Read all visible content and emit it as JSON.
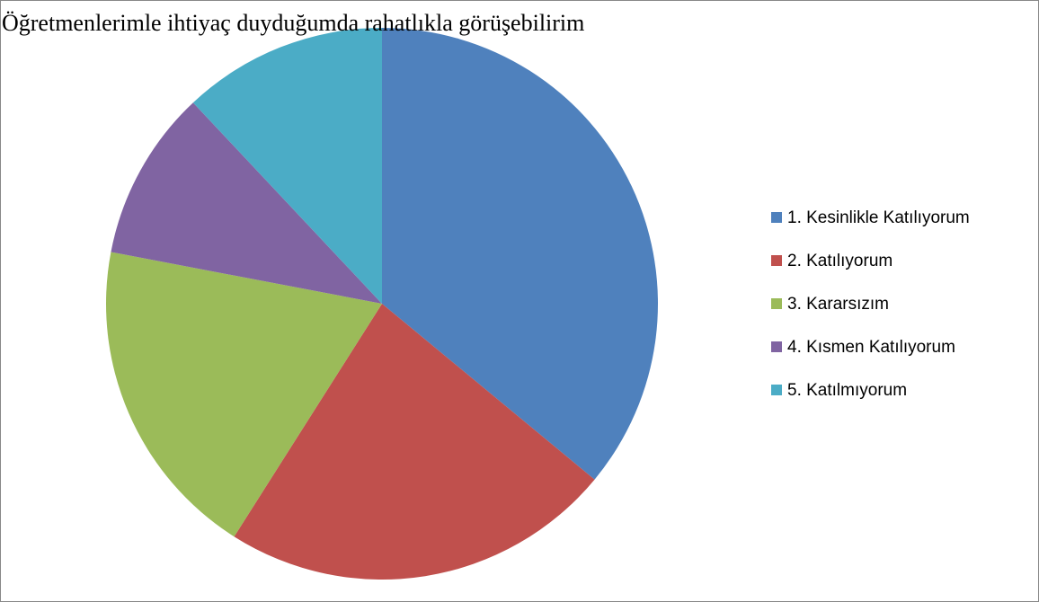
{
  "chart_data": {
    "type": "pie",
    "title": "Öğretmenlerimle ihtiyaç duyduğumda rahatlıkla görüşebilirim",
    "categories": [
      "1. Kesinlikle Katılıyorum",
      "2. Katılıyorum",
      "3. Kararsızım",
      "4. Kısmen Katılıyorum",
      "5. Katılmıyorum"
    ],
    "values": [
      36,
      23,
      19,
      10,
      12
    ],
    "colors": [
      "#4f81bd",
      "#c0504d",
      "#9bbb59",
      "#8064a2",
      "#4bacc6"
    ],
    "legend": "right"
  }
}
